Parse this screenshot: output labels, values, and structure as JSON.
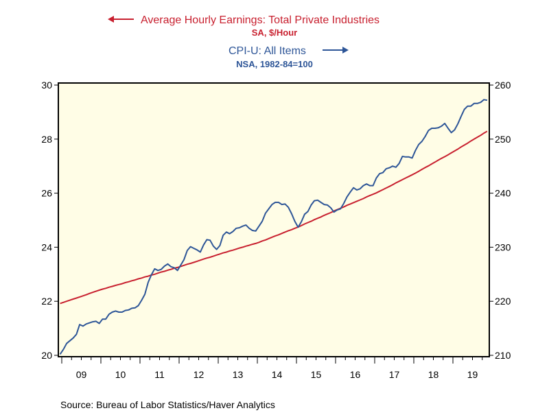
{
  "chart_data": {
    "type": "line",
    "source": "Source:  Bureau of Labor Statistics/Haver Analytics",
    "frequency": "monthly",
    "x_range": [
      "2008-12",
      "2019-11"
    ],
    "x_tick_labels": [
      "09",
      "10",
      "11",
      "12",
      "13",
      "14",
      "15",
      "16",
      "17",
      "18",
      "19"
    ],
    "left_axis": {
      "ylim": [
        20,
        30
      ],
      "ticks": [
        "20",
        "22",
        "24",
        "26",
        "28",
        "30"
      ]
    },
    "right_axis": {
      "ylim": [
        210,
        260
      ],
      "ticks": [
        "210",
        "220",
        "230",
        "240",
        "250",
        "260"
      ]
    },
    "background": "#fffde6",
    "grid": false,
    "series": [
      {
        "name": "Average Hourly Earnings: Total Private Industries",
        "units": "SA, $/Hour",
        "axis": "left",
        "color": "#c8202f",
        "values": [
          21.92,
          21.96,
          22.0,
          22.04,
          22.08,
          22.12,
          22.16,
          22.2,
          22.24,
          22.29,
          22.33,
          22.37,
          22.41,
          22.45,
          22.48,
          22.52,
          22.55,
          22.59,
          22.62,
          22.65,
          22.69,
          22.72,
          22.76,
          22.79,
          22.83,
          22.86,
          22.9,
          22.93,
          22.97,
          23.0,
          23.04,
          23.08,
          23.11,
          23.15,
          23.18,
          23.22,
          23.25,
          23.29,
          23.33,
          23.37,
          23.4,
          23.44,
          23.48,
          23.52,
          23.56,
          23.6,
          23.63,
          23.67,
          23.71,
          23.75,
          23.79,
          23.82,
          23.86,
          23.89,
          23.93,
          23.97,
          24.0,
          24.04,
          24.07,
          24.11,
          24.14,
          24.18,
          24.23,
          24.27,
          24.32,
          24.37,
          24.42,
          24.46,
          24.51,
          24.56,
          24.61,
          24.65,
          24.7,
          24.75,
          24.8,
          24.86,
          24.91,
          24.96,
          25.02,
          25.07,
          25.12,
          25.18,
          25.23,
          25.28,
          25.34,
          25.39,
          25.44,
          25.49,
          25.55,
          25.6,
          25.65,
          25.7,
          25.75,
          25.8,
          25.86,
          25.91,
          25.96,
          26.01,
          26.07,
          26.13,
          26.19,
          26.25,
          26.31,
          26.38,
          26.44,
          26.5,
          26.56,
          26.62,
          26.68,
          26.74,
          26.81,
          26.88,
          26.95,
          27.01,
          27.08,
          27.15,
          27.22,
          27.29,
          27.35,
          27.42,
          27.49,
          27.56,
          27.63,
          27.71,
          27.78,
          27.85,
          27.93,
          28.0,
          28.07,
          28.14,
          28.22,
          28.29
        ]
      },
      {
        "name": "CPI-U: All Items",
        "units": "NSA, 1982-84=100",
        "axis": "right",
        "color": "#2d5597",
        "values": [
          210.2,
          211.1,
          212.2,
          212.7,
          213.2,
          213.9,
          215.7,
          215.4,
          215.8,
          216.0,
          216.2,
          216.3,
          215.9,
          216.7,
          216.7,
          217.6,
          218.0,
          218.2,
          218.0,
          218.0,
          218.3,
          218.4,
          218.7,
          218.8,
          219.2,
          220.2,
          221.3,
          223.5,
          224.9,
          226.0,
          225.7,
          225.9,
          226.5,
          226.9,
          226.4,
          226.2,
          225.7,
          226.7,
          227.7,
          229.4,
          230.1,
          229.8,
          229.5,
          229.1,
          230.4,
          231.4,
          231.3,
          230.2,
          229.6,
          230.3,
          232.2,
          232.8,
          232.5,
          232.9,
          233.5,
          233.6,
          233.9,
          234.1,
          233.5,
          233.1,
          233.0,
          233.9,
          234.8,
          236.3,
          237.1,
          237.9,
          238.3,
          238.3,
          237.9,
          238.0,
          237.4,
          236.2,
          234.8,
          233.7,
          234.7,
          236.1,
          236.6,
          237.8,
          238.6,
          238.7,
          238.3,
          237.9,
          237.8,
          237.3,
          236.5,
          236.9,
          237.1,
          238.1,
          239.3,
          240.2,
          241.0,
          240.6,
          240.8,
          241.4,
          241.7,
          241.4,
          241.4,
          242.8,
          243.6,
          243.8,
          244.5,
          244.7,
          245.0,
          244.8,
          245.5,
          246.8,
          246.7,
          246.7,
          246.5,
          247.9,
          249.0,
          249.6,
          250.5,
          251.6,
          252.0,
          252.0,
          252.1,
          252.4,
          252.9,
          252.0,
          251.2,
          251.7,
          252.8,
          254.2,
          255.5,
          256.1,
          256.1,
          256.6,
          256.6,
          256.8,
          257.3,
          257.2
        ]
      }
    ],
    "legend": {
      "left_label": "Average Hourly Earnings: Total Private Industries",
      "left_units": "SA, $/Hour",
      "left_arrow_icon": "arrow-left-icon",
      "right_label": "CPI-U: All Items",
      "right_units": "NSA, 1982-84=100",
      "right_arrow_icon": "arrow-right-icon"
    }
  }
}
